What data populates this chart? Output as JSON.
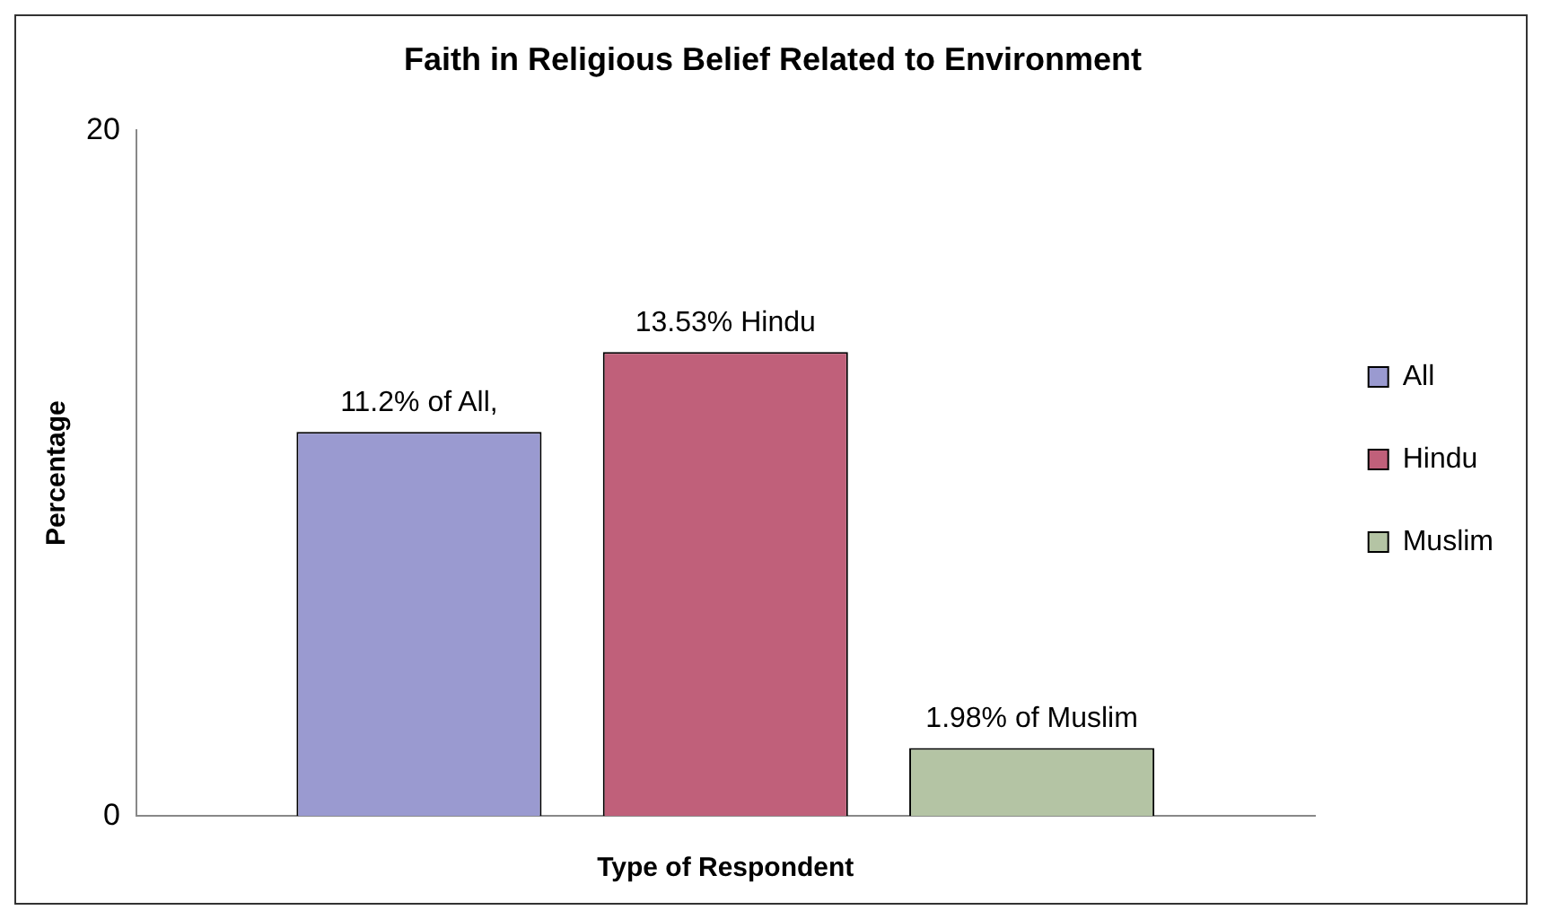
{
  "chart_data": {
    "type": "bar",
    "title": "Faith in Religious Belief Related to Environment",
    "xlabel": "Type of Respondent",
    "ylabel": "Percentage",
    "categories": [
      null
    ],
    "series": [
      {
        "name": "All",
        "color": "#9a9ad0",
        "values": [
          11.2
        ],
        "value_labels": [
          "11.2% of All,"
        ]
      },
      {
        "name": "Hindu",
        "color": "#c0607a",
        "values": [
          13.53
        ],
        "value_labels": [
          "13.53% Hindu"
        ]
      },
      {
        "name": "Muslim",
        "color": "#b4c4a4",
        "values": [
          1.98
        ],
        "value_labels": [
          "1.98% of Muslim"
        ]
      }
    ],
    "ylim": [
      0,
      20
    ],
    "yticks": [
      0,
      20
    ],
    "grid": false,
    "legend": "right"
  }
}
